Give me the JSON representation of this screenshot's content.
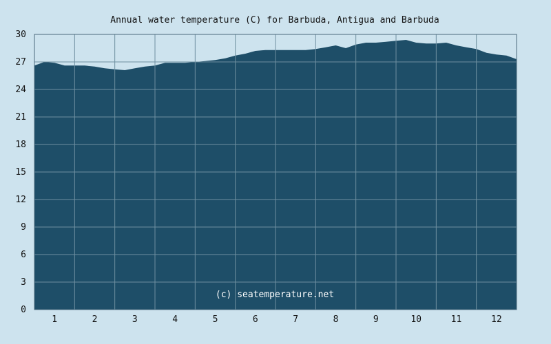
{
  "chart_data": {
    "type": "area",
    "title": "Annual water temperature (C) for Barbuda, Antigua and Barbuda",
    "xlabel": "",
    "ylabel": "",
    "credit": "(c) seatemperature.net",
    "x_ticks": [
      "1",
      "2",
      "3",
      "4",
      "5",
      "6",
      "7",
      "8",
      "9",
      "10",
      "11",
      "12"
    ],
    "y_ticks": [
      "0",
      "3",
      "6",
      "9",
      "12",
      "15",
      "18",
      "21",
      "24",
      "27",
      "30"
    ],
    "xlim": [
      0.5,
      12.5
    ],
    "ylim": [
      0,
      30
    ],
    "grid": true,
    "x": [
      0.5,
      0.75,
      1.0,
      1.25,
      1.5,
      1.75,
      2.0,
      2.25,
      2.5,
      2.75,
      3.0,
      3.25,
      3.5,
      3.75,
      4.0,
      4.25,
      4.5,
      4.75,
      5.0,
      5.25,
      5.5,
      5.75,
      6.0,
      6.25,
      6.5,
      6.75,
      7.0,
      7.25,
      7.5,
      7.75,
      8.0,
      8.25,
      8.5,
      8.75,
      9.0,
      9.25,
      9.5,
      9.75,
      10.0,
      10.25,
      10.5,
      10.75,
      11.0,
      11.25,
      11.5,
      11.75,
      12.0,
      12.25,
      12.5
    ],
    "values": [
      26.6,
      27.0,
      26.9,
      26.6,
      26.6,
      26.6,
      26.5,
      26.3,
      26.2,
      26.1,
      26.3,
      26.5,
      26.6,
      26.9,
      26.9,
      26.9,
      27.0,
      27.1,
      27.2,
      27.4,
      27.7,
      27.9,
      28.2,
      28.3,
      28.3,
      28.3,
      28.3,
      28.3,
      28.4,
      28.6,
      28.8,
      28.5,
      28.9,
      29.1,
      29.1,
      29.2,
      29.3,
      29.4,
      29.1,
      29.0,
      29.0,
      29.1,
      28.8,
      28.6,
      28.4,
      28.0,
      27.8,
      27.7,
      27.3
    ],
    "colors": {
      "background": "#cde3ee",
      "area": "#1e4e68",
      "grid": "#6e8fa0",
      "border": "#4a6a7c",
      "text": "#111111",
      "credit": "#ffffff"
    }
  }
}
